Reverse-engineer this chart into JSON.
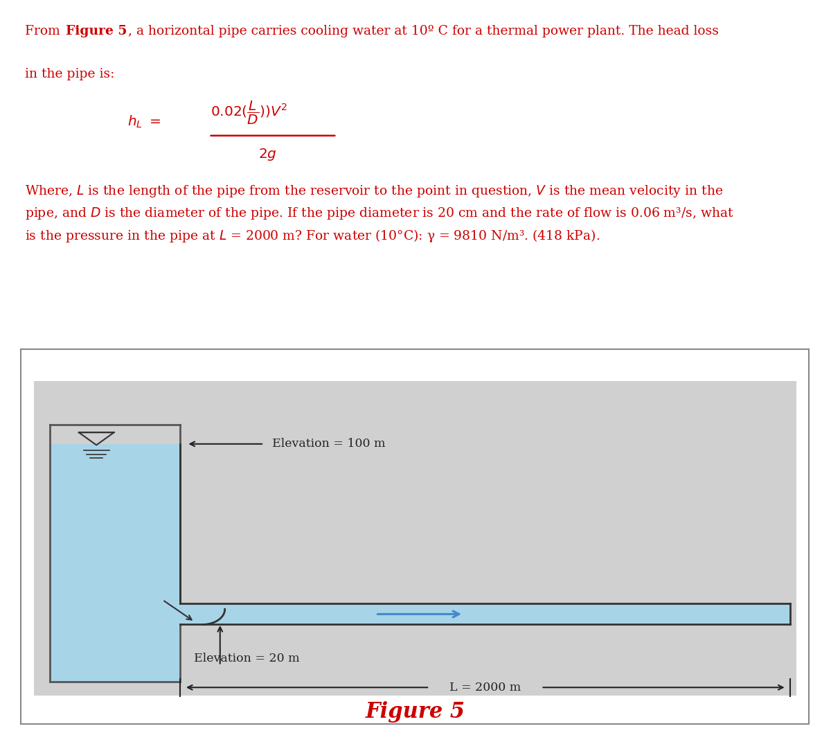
{
  "text_color": "#CC0000",
  "figure_bg": "#ffffff",
  "diagram_bg": "#d0d0d0",
  "water_color": "#a8d4e8",
  "pipe_outline": "#333333",
  "reservoir_outline": "#555555",
  "title": "Figure 5",
  "title_color": "#CC0000",
  "title_fontsize": 22,
  "elevation_100_label": "Elevation = 100 m",
  "elevation_20_label": "Elevation = 20 m",
  "length_label": "L = 2000 m",
  "text_fontsize": 13.5,
  "arrow_color": "#4488cc",
  "para1_part1": "From ",
  "para1_bold": "Figure 5",
  "para1_rest": ", a horizontal pipe carries cooling water at 10º C for a thermal power plant. The head loss",
  "para1_line2": "in the pipe is:",
  "para2": "Where, $L$ is the length of the pipe from the reservoir to the point in question, $V$ is the mean velocity in the\npipe, and $D$ is the diameter of the pipe. If the pipe diameter is 20 cm and the rate of flow is 0.06 m³/s, what\nis the pressure in the pipe at $L$ = 2000 m? For water (10°C): γ = 9810 N/m³. (418 kPa).",
  "border_color": "#888888",
  "dim_color": "#222222"
}
